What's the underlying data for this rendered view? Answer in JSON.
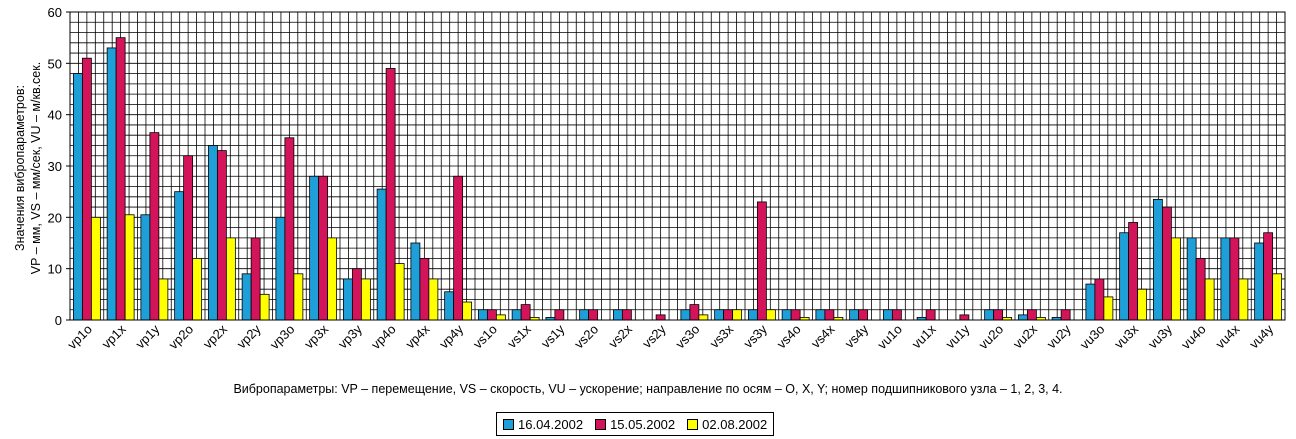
{
  "chart_data": {
    "type": "bar",
    "title": "",
    "xlabel": "",
    "ylabel_line1": "Значения вибропараметров:",
    "ylabel_line2": "VP – мм, VS – мм/сек, VU – м/кв.сек.",
    "caption": "Вибропараметры: VP – перемещение, VS – скорость, VU – ускорение; направление по осям – O, X, Y; номер подшипникового узла – 1, 2, 3, 4.",
    "ylim": [
      0,
      60
    ],
    "yticks": [
      "0",
      "10",
      "20",
      "30",
      "40",
      "50",
      "60"
    ],
    "grid": true,
    "legend_position": "bottom",
    "categories": [
      "vp1o",
      "vp1x",
      "vp1y",
      "vp2o",
      "vp2x",
      "vp2y",
      "vp3o",
      "vp3x",
      "vp3y",
      "vp4o",
      "vp4x",
      "vp4y",
      "vs1o",
      "vs1x",
      "vs1y",
      "vs2o",
      "vs2x",
      "vs2y",
      "vs3o",
      "vs3x",
      "vs3y",
      "vs4o",
      "vs4x",
      "vs4y",
      "vu1o",
      "vu1x",
      "vu1y",
      "vu2o",
      "vu2x",
      "vu2y",
      "vu3o",
      "vu3x",
      "vu3y",
      "vu4o",
      "vu4x",
      "vu4y"
    ],
    "series": [
      {
        "name": "16.04.2002",
        "color": "#1e9fd8",
        "values": [
          48,
          53,
          20.5,
          25,
          34,
          9,
          20,
          28,
          8,
          25.5,
          15,
          5.5,
          2,
          2,
          0.5,
          2,
          2,
          0,
          2,
          2,
          2,
          2,
          2,
          2,
          2,
          0.5,
          0,
          2,
          1,
          0.5,
          7,
          17,
          23.5,
          16,
          16,
          15
        ]
      },
      {
        "name": "15.05.2002",
        "color": "#d4145a",
        "values": [
          51,
          55,
          36.5,
          32,
          33,
          16,
          35.5,
          28,
          10,
          49,
          12,
          28,
          2,
          3,
          2,
          2,
          2,
          1,
          3,
          2,
          23,
          2,
          2,
          2,
          2,
          2,
          1,
          2,
          2,
          2,
          8,
          19,
          22,
          12,
          16,
          17
        ]
      },
      {
        "name": "02.08.2002",
        "color": "#ffff00",
        "values": [
          20,
          20.5,
          8,
          12,
          16,
          5,
          9,
          16,
          8,
          11,
          8,
          3.5,
          1,
          0.5,
          0,
          0,
          0,
          0,
          1,
          2,
          2,
          0.5,
          0.5,
          0,
          0,
          0,
          0,
          0.5,
          0.5,
          0,
          4.5,
          6,
          16,
          8,
          8,
          9
        ]
      }
    ]
  }
}
